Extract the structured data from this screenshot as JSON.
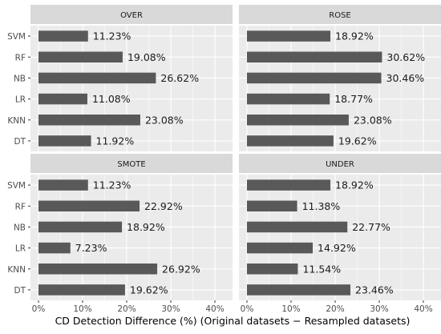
{
  "chart_data": {
    "type": "bar",
    "orientation": "horizontal",
    "xlabel": "CD Detection Difference (%) (Original datasets − Resampled datasets)",
    "ylabel": "",
    "xlim": [
      0,
      40
    ],
    "xticks": [
      "0%",
      "10%",
      "20%",
      "30%",
      "40%"
    ],
    "categories": [
      "SVM",
      "RF",
      "NB",
      "LR",
      "KNN",
      "DT"
    ],
    "grid": true,
    "facets": [
      {
        "name": "OVER",
        "values": [
          11.23,
          19.08,
          26.62,
          11.08,
          23.08,
          11.92
        ],
        "labels": [
          "11.23%",
          "19.08%",
          "26.62%",
          "11.08%",
          "23.08%",
          "11.92%"
        ]
      },
      {
        "name": "ROSE",
        "values": [
          18.92,
          30.62,
          30.46,
          18.77,
          23.08,
          19.62
        ],
        "labels": [
          "18.92%",
          "30.62%",
          "30.46%",
          "18.77%",
          "23.08%",
          "19.62%"
        ]
      },
      {
        "name": "SMOTE",
        "values": [
          11.23,
          22.92,
          18.92,
          7.23,
          26.92,
          19.62
        ],
        "labels": [
          "11.23%",
          "22.92%",
          "18.92%",
          "7.23%",
          "26.92%",
          "19.62%"
        ]
      },
      {
        "name": "UNDER",
        "values": [
          18.92,
          11.38,
          22.77,
          14.92,
          11.54,
          23.46
        ],
        "labels": [
          "18.92%",
          "11.38%",
          "22.77%",
          "14.92%",
          "11.54%",
          "23.46%"
        ]
      }
    ],
    "colors": {
      "bar": "#595959",
      "panel": "#ebebeb",
      "strip": "#d9d9d9",
      "grid": "#ffffff",
      "text": "#1a1a1a",
      "tick": "#4d4d4d"
    }
  }
}
